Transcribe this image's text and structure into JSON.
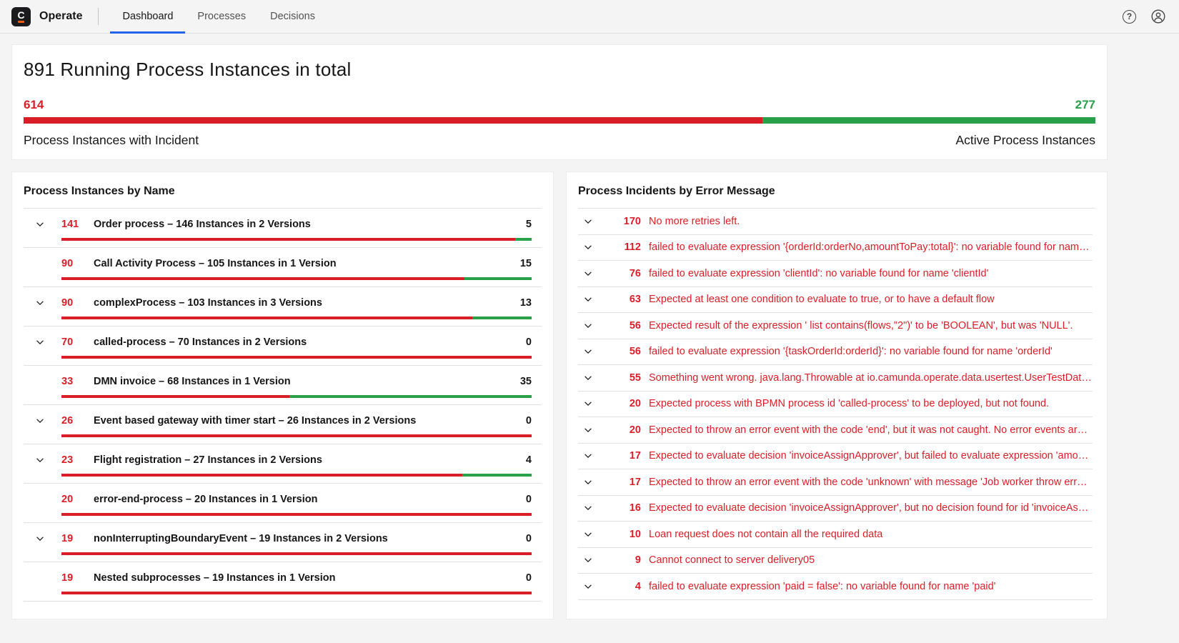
{
  "colors": {
    "red": "#da1e28",
    "green": "#2ba04a",
    "blue": "#2563eb"
  },
  "navbar": {
    "logo_letter": "C",
    "app_name": "Operate",
    "tabs": [
      {
        "label": "Dashboard",
        "active": true
      },
      {
        "label": "Processes",
        "active": false
      },
      {
        "label": "Decisions",
        "active": false
      }
    ],
    "help_icon": "?"
  },
  "metrics": {
    "title": "891 Running Process Instances in total",
    "incidents_count": 614,
    "active_count": 277,
    "incidents_label": "Process Instances with Incident",
    "active_label": "Active Process Instances"
  },
  "instances_panel": {
    "title": "Process Instances by Name",
    "rows": [
      {
        "expandable": true,
        "incidents": 141,
        "name": "Order process – 146 Instances in 2 Versions",
        "active": 5
      },
      {
        "expandable": false,
        "incidents": 90,
        "name": "Call Activity Process – 105 Instances in 1 Version",
        "active": 15
      },
      {
        "expandable": true,
        "incidents": 90,
        "name": "complexProcess – 103 Instances in 3 Versions",
        "active": 13
      },
      {
        "expandable": true,
        "incidents": 70,
        "name": "called-process – 70 Instances in 2 Versions",
        "active": 0
      },
      {
        "expandable": false,
        "incidents": 33,
        "name": "DMN invoice – 68 Instances in 1 Version",
        "active": 35
      },
      {
        "expandable": true,
        "incidents": 26,
        "name": "Event based gateway with timer start – 26 Instances in 2 Versions",
        "active": 0
      },
      {
        "expandable": true,
        "incidents": 23,
        "name": "Flight registration – 27 Instances in 2 Versions",
        "active": 4
      },
      {
        "expandable": false,
        "incidents": 20,
        "name": "error-end-process – 20 Instances in 1 Version",
        "active": 0
      },
      {
        "expandable": true,
        "incidents": 19,
        "name": "nonInterruptingBoundaryEvent – 19 Instances in 2 Versions",
        "active": 0
      },
      {
        "expandable": false,
        "incidents": 19,
        "name": "Nested subprocesses – 19 Instances in 1 Version",
        "active": 0
      }
    ]
  },
  "incidents_panel": {
    "title": "Process Incidents by Error Message",
    "rows": [
      {
        "count": 170,
        "message": "No more retries left."
      },
      {
        "count": 112,
        "message": "failed to evaluate expression '{orderId:orderNo,amountToPay:total}': no variable found for name 't…"
      },
      {
        "count": 76,
        "message": "failed to evaluate expression 'clientId': no variable found for name 'clientId'"
      },
      {
        "count": 63,
        "message": "Expected at least one condition to evaluate to true, or to have a default flow"
      },
      {
        "count": 56,
        "message": "Expected result of the expression ' list contains(flows,\"2\")' to be 'BOOLEAN', but was 'NULL'."
      },
      {
        "count": 56,
        "message": "failed to evaluate expression '{taskOrderId:orderId}': no variable found for name 'orderId'"
      },
      {
        "count": 55,
        "message": "Something went wrong. java.lang.Throwable at io.camunda.operate.data.usertest.UserTestDataGe…"
      },
      {
        "count": 20,
        "message": "Expected process with BPMN process id 'called-process' to be deployed, but not found."
      },
      {
        "count": 20,
        "message": "Expected to throw an error event with the code 'end', but it was not caught. No error events are ava…"
      },
      {
        "count": 17,
        "message": "Expected to evaluate decision 'invoiceAssignApprover', but failed to evaluate expression 'amount': …"
      },
      {
        "count": 17,
        "message": "Expected to throw an error event with the code 'unknown' with message 'Job worker throw error wi…"
      },
      {
        "count": 16,
        "message": "Expected to evaluate decision 'invoiceAssignApprover', but no decision found for id 'invoiceAssignA…"
      },
      {
        "count": 10,
        "message": "Loan request does not contain all the required data"
      },
      {
        "count": 9,
        "message": "Cannot connect to server delivery05"
      },
      {
        "count": 4,
        "message": "failed to evaluate expression 'paid = false': no variable found for name 'paid'"
      }
    ]
  }
}
